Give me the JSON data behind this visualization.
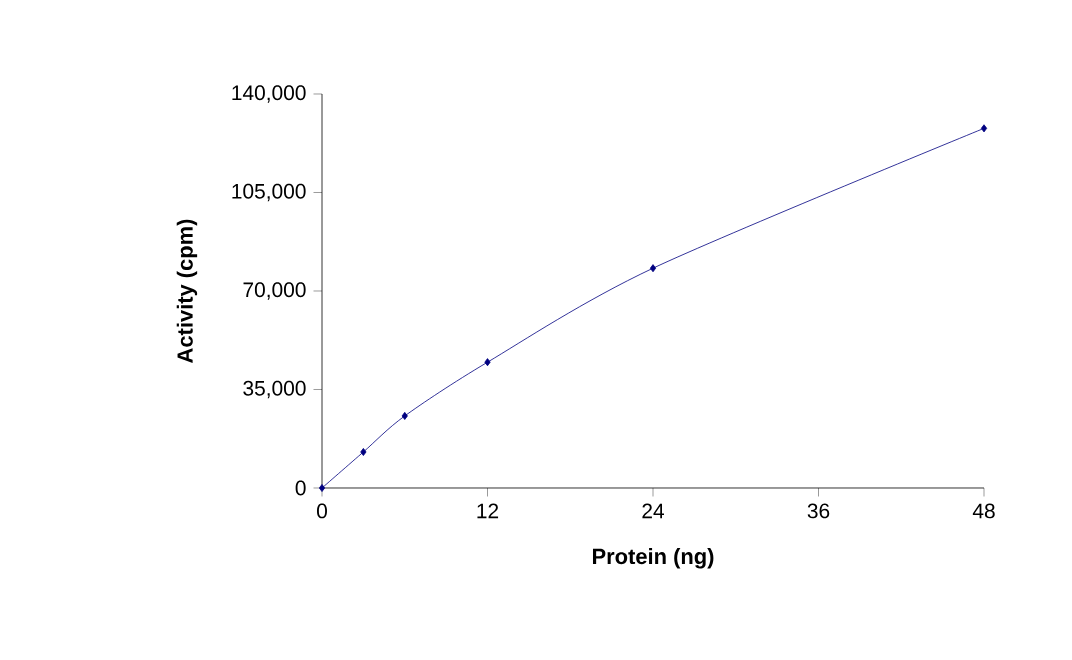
{
  "chart_data": {
    "type": "line",
    "xlabel": "Protein (ng)",
    "ylabel": "Activity (cpm)",
    "x": [
      0,
      3,
      6,
      12,
      24,
      48
    ],
    "series": [
      {
        "color": "#000080",
        "values": [
          0,
          12800,
          25600,
          44700,
          78100,
          127800
        ]
      }
    ],
    "xlim": [
      0,
      48
    ],
    "xticks": [
      0,
      12,
      24,
      36,
      48
    ],
    "ylim": [
      0,
      140000
    ],
    "yticks": [
      {
        "value": 0,
        "label": "0"
      },
      {
        "value": 35000,
        "label": "35,000"
      },
      {
        "value": 70000,
        "label": "70,000"
      },
      {
        "value": 105000,
        "label": "105,000"
      },
      {
        "value": 140000,
        "label": "140,000"
      }
    ],
    "marker": "diamond",
    "line_style": "solid",
    "grid": false
  }
}
